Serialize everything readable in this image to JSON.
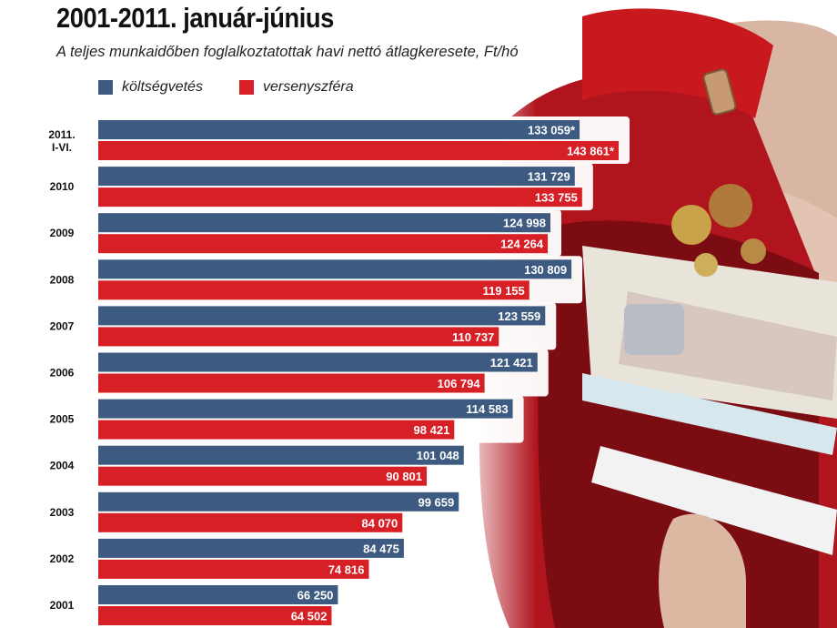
{
  "title": "2001-2011. január-június",
  "subtitle": "A teljes munkaidőben foglalkoztatottak havi nettó átlagkeresete, Ft/hó",
  "colors": {
    "koltsegvetes": "#3d5a80",
    "versenyszfera": "#d71f26",
    "title": "#111111"
  },
  "chart_data": {
    "type": "bar",
    "orientation": "horizontal",
    "title": "2001-2011. január-június",
    "subtitle": "A teljes munkaidőben foglalkoztatottak havi nettó átlagkeresete, Ft/hó",
    "categories": [
      [
        "2011.",
        "I-VI."
      ],
      [
        "2010"
      ],
      [
        "2009"
      ],
      [
        "2008"
      ],
      [
        "2007"
      ],
      [
        "2006"
      ],
      [
        "2005"
      ],
      [
        "2004"
      ],
      [
        "2003"
      ],
      [
        "2002"
      ],
      [
        "2001"
      ]
    ],
    "series": [
      {
        "name": "költségvetés",
        "color": "#3d5a80",
        "values": [
          133059,
          131729,
          124998,
          130809,
          123559,
          121421,
          114583,
          101048,
          99659,
          84475,
          66250
        ],
        "labels": [
          "133 059*",
          "131 729",
          "124 998",
          "130 809",
          "123 559",
          "121 421",
          "114 583",
          "101 048",
          "99 659",
          "84 475",
          "66 250"
        ]
      },
      {
        "name": "versenyszféra",
        "color": "#d71f26",
        "values": [
          143861,
          133755,
          124264,
          119155,
          110737,
          106794,
          98421,
          90801,
          84070,
          74816,
          64502
        ],
        "labels": [
          "143 861*",
          "133 755",
          "124 264",
          "119 155",
          "110 737",
          "106 794",
          "98 421",
          "90 801",
          "84 070",
          "74 816",
          "64 502"
        ]
      }
    ],
    "legend_position": "top-left",
    "grid": false
  }
}
